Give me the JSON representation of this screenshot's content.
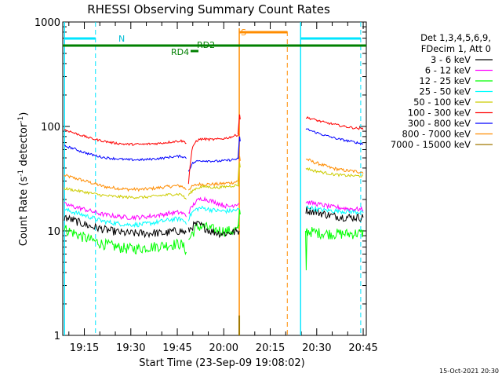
{
  "chart_data": {
    "type": "line",
    "title": "RHESSI Observing Summary Count Rates",
    "xlabel": "Start Time (23-Sep-09 19:08:02)",
    "ylabel_main": "Count Rate (s",
    "ylabel_sup1": "-1",
    "ylabel_mid": " detector",
    "ylabel_sup2": "-1",
    "ylabel_end": ")",
    "x_ticks": [
      "19:15",
      "19:30",
      "19:45",
      "20:00",
      "20:15",
      "20:30",
      "20:45"
    ],
    "x_tick_minutes": [
      1155,
      1170,
      1185,
      1200,
      1215,
      1230,
      1245
    ],
    "xlim_minutes": [
      1148.03,
      1246.0
    ],
    "y_ticks": [
      "1",
      "10",
      "100",
      "1000"
    ],
    "ylim": [
      1,
      1000
    ],
    "y_scale": "log",
    "legend_header": [
      "Det 1,3,4,5,6,9,",
      "FDecim 1, Att 0"
    ],
    "series": [
      {
        "name": "3 - 6 keV",
        "color": "#000000",
        "segA": [
          13.5,
          13,
          12.5,
          12,
          11.5,
          11,
          10.8,
          10.5,
          10.2,
          10,
          9.8,
          9.6,
          9.5,
          9.5,
          9.5,
          9.5,
          9.5,
          9.6,
          9.5,
          9.5,
          9.8,
          10,
          10,
          9.5
        ],
        "segB": [
          10,
          11,
          11.5,
          11.5,
          11,
          10.5,
          10,
          9.8,
          9.6,
          9.5,
          9.5,
          9.6,
          9.7,
          9.8,
          10
        ],
        "segC": [
          16,
          15.5,
          15,
          14.5,
          14,
          13.8,
          13.6,
          13.5,
          13.5,
          13.5
        ],
        "noise": 0.09
      },
      {
        "name": "6 - 12 keV",
        "color": "#ff00ff",
        "segA": [
          18,
          17.5,
          17,
          16.5,
          16,
          15.5,
          15,
          14.5,
          14.2,
          14,
          13.8,
          13.6,
          13.5,
          13.5,
          13.5,
          13.6,
          13.8,
          14,
          14.2,
          14.5,
          14.8,
          15,
          15,
          14
        ],
        "segB": [
          15,
          17,
          19,
          20,
          20.5,
          20,
          19.5,
          19,
          18.5,
          18,
          17.5,
          17,
          17.5,
          18,
          18.5
        ],
        "segC": [
          19,
          18.5,
          18,
          17.5,
          17,
          16.8,
          16.5,
          16.3,
          16.2,
          16
        ],
        "noise": 0.05
      },
      {
        "name": "12 - 25 keV",
        "color": "#00ff00",
        "segA": [
          10.5,
          10,
          9.5,
          9,
          8.6,
          8.2,
          7.9,
          7.6,
          7.4,
          7.2,
          7,
          6.9,
          6.8,
          6.8,
          6.8,
          6.9,
          7,
          7.1,
          7.2,
          7.3,
          7.4,
          7.5,
          7.5,
          6.5
        ],
        "segB": [
          8,
          9.5,
          10.5,
          11,
          11,
          10.8,
          10.5,
          10.3,
          10.2,
          10.1,
          10,
          10,
          10,
          10.2,
          10.5
        ],
        "segC": [
          10,
          9.8,
          9.6,
          9.5,
          9.4,
          9.4,
          9.4,
          9.4,
          9.5,
          9.5
        ],
        "noise": 0.12
      },
      {
        "name": "25 - 50 keV",
        "color": "#00ffff",
        "segA": [
          16,
          15.5,
          15,
          14.5,
          14,
          13.5,
          13,
          12.5,
          12.2,
          12,
          11.8,
          11.6,
          11.5,
          11.5,
          11.5,
          11.6,
          11.8,
          12,
          12.3,
          12.5,
          12.8,
          13,
          13,
          12
        ],
        "segB": [
          13,
          15,
          16,
          16.5,
          16.5,
          16.3,
          16,
          15.8,
          15.6,
          15.5,
          15.5,
          15.5,
          15.6,
          15.8,
          16
        ],
        "segC": [
          17,
          16.5,
          16,
          15.8,
          15.6,
          15.5,
          15.4,
          15.3,
          15.2,
          15.2
        ],
        "noise": 0.05
      },
      {
        "name": "50 - 100 keV",
        "color": "#cccc00",
        "segA": [
          25.5,
          25,
          24.5,
          24,
          23.5,
          23,
          22.5,
          22,
          21.7,
          21.5,
          21.3,
          21.2,
          21,
          21,
          21,
          21,
          21.2,
          21.5,
          21.8,
          22,
          22.3,
          22.5,
          22.5,
          20
        ],
        "segB": [
          22,
          24,
          25.5,
          26,
          26.5,
          26.5,
          26.3,
          26,
          26,
          26.2,
          26.5,
          26.8,
          27,
          27.3,
          27.5
        ],
        "segC": [
          40,
          38,
          37,
          36,
          35,
          34.5,
          34,
          33.8,
          33.6,
          33.5
        ],
        "noise": 0.03
      },
      {
        "name": "100 - 300 keV",
        "color": "#ff0000",
        "segA": [
          93,
          90,
          86,
          83,
          80,
          77,
          75,
          73,
          71.5,
          70,
          69,
          68,
          67.5,
          67.5,
          67.5,
          67.5,
          68,
          68.5,
          69,
          70,
          71,
          72,
          73,
          70
        ],
        "segB": [
          28,
          60,
          72,
          75,
          76,
          75.5,
          75,
          75,
          75.5,
          76,
          77,
          78,
          80,
          82,
          84
        ],
        "segC": [
          122,
          118,
          113,
          109,
          106,
          103,
          100,
          98,
          96,
          95
        ],
        "noise": 0.025
      },
      {
        "name": "300 - 800 keV",
        "color": "#0000ff",
        "segA": [
          65,
          63,
          61,
          58,
          56,
          54,
          52.5,
          51,
          50,
          49.5,
          49,
          48.5,
          48,
          48,
          48,
          48,
          48.5,
          49,
          49.5,
          50,
          51,
          51.5,
          52,
          50
        ],
        "segB": [
          37,
          44,
          46,
          47,
          47,
          47,
          46.8,
          46.5,
          46.5,
          46.8,
          47,
          47.5,
          48,
          48.5,
          49
        ],
        "segC": [
          95,
          90,
          86,
          82,
          79,
          76,
          74,
          72,
          70,
          68
        ],
        "noise": 0.025
      },
      {
        "name": "800 - 7000 keV",
        "color": "#ff8c00",
        "segA": [
          34,
          33,
          32,
          31,
          30,
          29,
          28,
          27,
          26.3,
          26,
          25.6,
          25.3,
          25,
          25,
          25,
          25,
          25.3,
          25.6,
          26,
          26.3,
          26.7,
          27,
          27,
          25
        ],
        "segB": [
          25,
          26.5,
          27.5,
          28,
          28,
          28,
          28,
          28,
          28,
          28.3,
          28.5,
          28.8,
          29,
          29.5,
          30
        ],
        "segC": [
          49,
          46,
          44,
          42,
          40,
          39,
          38,
          37.5,
          37,
          36.5
        ],
        "noise": 0.035
      },
      {
        "name": "7000 - 15000 keV",
        "color": "#a07800"
      }
    ],
    "segments_minutes": {
      "A": [
        1148.5,
        1187.9
      ],
      "B": [
        1188.6,
        1205.0
      ],
      "C": [
        1226.5,
        1245.0
      ]
    },
    "markers": {
      "N_label": "N",
      "S_label": "S",
      "RD4_label": "RD4",
      "RD2_label": "RD2",
      "cyan_lines": [
        1148.6,
        1224.8
      ],
      "cyan_dashed": [
        1158.6,
        1244.2
      ],
      "orange_line": 1205.0,
      "orange_dashed": 1220.5,
      "attenuator_bar": [
        1205.0,
        1220.5
      ],
      "cyan_bars": [
        [
          1148.6,
          1158.6
        ],
        [
          1224.8,
          1244.2
        ]
      ]
    },
    "timestamp": "15-Oct-2021 20:30"
  }
}
